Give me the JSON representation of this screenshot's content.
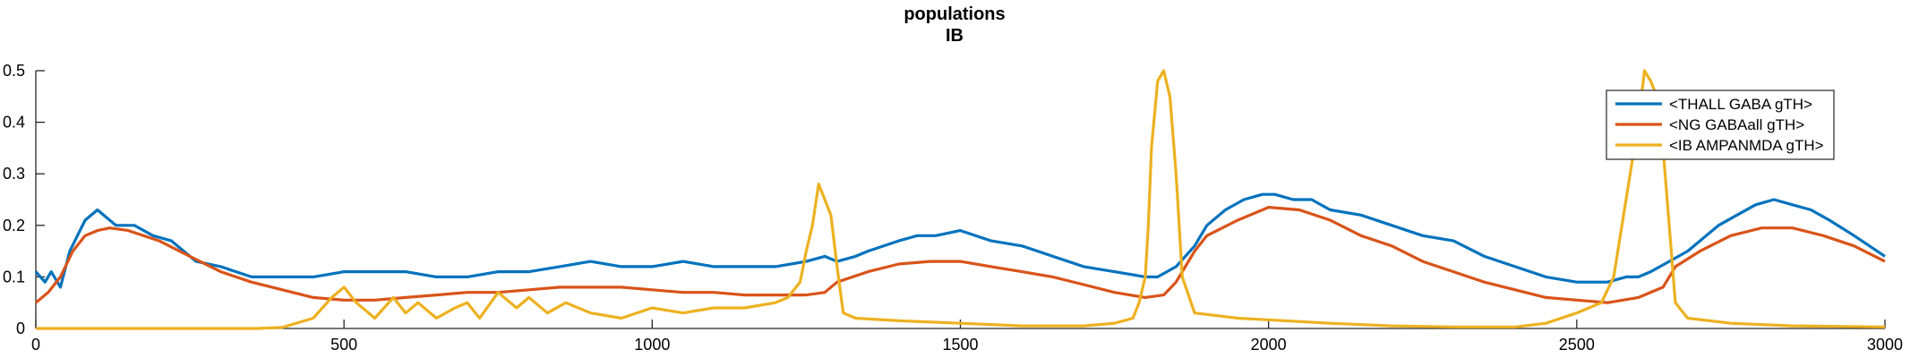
{
  "chart_data": {
    "type": "line",
    "title": [
      "populations",
      "IB"
    ],
    "xlim": [
      0,
      3000
    ],
    "ylim": [
      0,
      0.5
    ],
    "xticks": [
      "0",
      "500",
      "1000",
      "1500",
      "2000",
      "2500",
      "3000"
    ],
    "yticks": [
      "0",
      "0.1",
      "0.2",
      "0.3",
      "0.4",
      "0.5"
    ],
    "grid": false,
    "legend_position": "top-right",
    "series": [
      {
        "name": "<THALL GABA gTH>",
        "color": "#0072BD",
        "x": [
          0,
          15,
          25,
          40,
          55,
          80,
          100,
          130,
          160,
          190,
          220,
          260,
          300,
          350,
          400,
          450,
          500,
          550,
          600,
          650,
          700,
          750,
          800,
          850,
          900,
          950,
          1000,
          1050,
          1100,
          1150,
          1200,
          1250,
          1280,
          1300,
          1330,
          1350,
          1400,
          1430,
          1460,
          1500,
          1550,
          1600,
          1650,
          1700,
          1750,
          1800,
          1820,
          1850,
          1880,
          1900,
          1930,
          1960,
          1990,
          2010,
          2040,
          2070,
          2100,
          2150,
          2200,
          2250,
          2300,
          2350,
          2400,
          2450,
          2500,
          2550,
          2580,
          2600,
          2620,
          2650,
          2680,
          2700,
          2730,
          2760,
          2790,
          2820,
          2850,
          2880,
          2910,
          2950,
          3000
        ],
        "y": [
          0.11,
          0.09,
          0.11,
          0.08,
          0.15,
          0.21,
          0.23,
          0.2,
          0.2,
          0.18,
          0.17,
          0.13,
          0.12,
          0.1,
          0.1,
          0.1,
          0.11,
          0.11,
          0.11,
          0.1,
          0.1,
          0.11,
          0.11,
          0.12,
          0.13,
          0.12,
          0.12,
          0.13,
          0.12,
          0.12,
          0.12,
          0.13,
          0.14,
          0.13,
          0.14,
          0.15,
          0.17,
          0.18,
          0.18,
          0.19,
          0.17,
          0.16,
          0.14,
          0.12,
          0.11,
          0.1,
          0.1,
          0.12,
          0.16,
          0.2,
          0.23,
          0.25,
          0.26,
          0.26,
          0.25,
          0.25,
          0.23,
          0.22,
          0.2,
          0.18,
          0.17,
          0.14,
          0.12,
          0.1,
          0.09,
          0.09,
          0.1,
          0.1,
          0.11,
          0.13,
          0.15,
          0.17,
          0.2,
          0.22,
          0.24,
          0.25,
          0.24,
          0.23,
          0.21,
          0.18,
          0.14
        ]
      },
      {
        "name": "<NG GABAall gTH>",
        "color": "#D95319",
        "x": [
          0,
          20,
          40,
          60,
          80,
          100,
          120,
          150,
          200,
          250,
          300,
          350,
          400,
          450,
          500,
          550,
          600,
          650,
          700,
          750,
          800,
          850,
          900,
          950,
          1000,
          1050,
          1100,
          1150,
          1200,
          1250,
          1280,
          1300,
          1350,
          1400,
          1450,
          1500,
          1550,
          1600,
          1650,
          1700,
          1750,
          1800,
          1830,
          1850,
          1880,
          1900,
          1950,
          2000,
          2050,
          2100,
          2150,
          2200,
          2250,
          2300,
          2350,
          2400,
          2450,
          2500,
          2550,
          2600,
          2640,
          2660,
          2700,
          2750,
          2800,
          2850,
          2900,
          2950,
          3000
        ],
        "y": [
          0.05,
          0.07,
          0.1,
          0.15,
          0.18,
          0.19,
          0.195,
          0.19,
          0.17,
          0.14,
          0.11,
          0.09,
          0.075,
          0.06,
          0.055,
          0.055,
          0.06,
          0.065,
          0.07,
          0.07,
          0.075,
          0.08,
          0.08,
          0.08,
          0.075,
          0.07,
          0.07,
          0.065,
          0.065,
          0.065,
          0.07,
          0.09,
          0.11,
          0.125,
          0.13,
          0.13,
          0.12,
          0.11,
          0.1,
          0.085,
          0.07,
          0.06,
          0.065,
          0.09,
          0.15,
          0.18,
          0.21,
          0.235,
          0.23,
          0.21,
          0.18,
          0.16,
          0.13,
          0.11,
          0.09,
          0.075,
          0.06,
          0.055,
          0.05,
          0.06,
          0.08,
          0.12,
          0.15,
          0.18,
          0.195,
          0.195,
          0.18,
          0.16,
          0.13
        ]
      },
      {
        "name": "<IB AMPANMDA gTH>",
        "color": "#EDB120",
        "x": [
          0,
          100,
          200,
          300,
          360,
          400,
          450,
          480,
          500,
          520,
          550,
          580,
          600,
          620,
          650,
          680,
          700,
          720,
          750,
          780,
          800,
          830,
          860,
          900,
          950,
          1000,
          1050,
          1100,
          1150,
          1200,
          1220,
          1240,
          1250,
          1260,
          1270,
          1280,
          1290,
          1300,
          1310,
          1330,
          1400,
          1500,
          1600,
          1700,
          1750,
          1780,
          1790,
          1800,
          1805,
          1810,
          1820,
          1830,
          1840,
          1850,
          1860,
          1880,
          1950,
          2100,
          2200,
          2300,
          2400,
          2450,
          2500,
          2540,
          2560,
          2580,
          2600,
          2610,
          2620,
          2630,
          2640,
          2650,
          2660,
          2680,
          2750,
          2850,
          3000
        ],
        "y": [
          0,
          0,
          0,
          0,
          0,
          0.002,
          0.02,
          0.06,
          0.08,
          0.05,
          0.02,
          0.06,
          0.03,
          0.05,
          0.02,
          0.04,
          0.05,
          0.02,
          0.07,
          0.04,
          0.06,
          0.03,
          0.05,
          0.03,
          0.02,
          0.04,
          0.03,
          0.04,
          0.04,
          0.05,
          0.06,
          0.09,
          0.15,
          0.2,
          0.28,
          0.25,
          0.22,
          0.12,
          0.03,
          0.02,
          0.015,
          0.01,
          0.005,
          0.005,
          0.01,
          0.02,
          0.05,
          0.1,
          0.2,
          0.35,
          0.48,
          0.5,
          0.45,
          0.3,
          0.1,
          0.03,
          0.02,
          0.01,
          0.005,
          0.003,
          0.003,
          0.01,
          0.03,
          0.05,
          0.1,
          0.25,
          0.4,
          0.5,
          0.48,
          0.45,
          0.35,
          0.2,
          0.05,
          0.02,
          0.01,
          0.005,
          0.003
        ]
      }
    ]
  }
}
